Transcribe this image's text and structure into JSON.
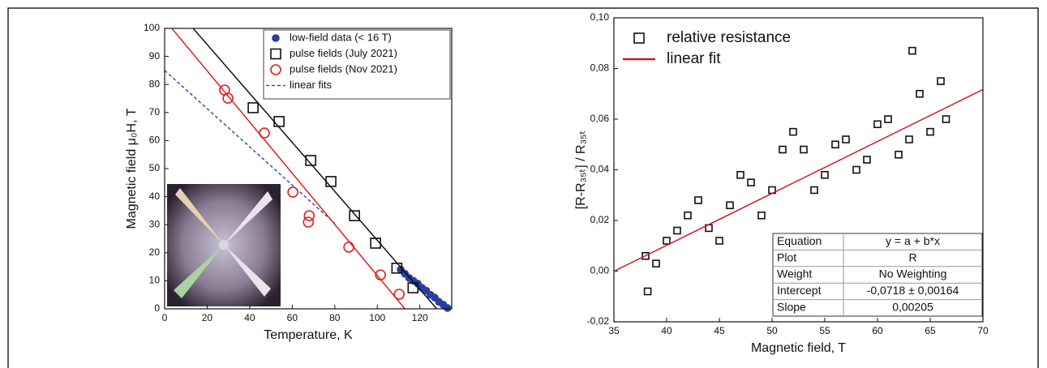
{
  "chart_data": [
    {
      "type": "scatter",
      "xlabel": "Temperature, K",
      "ylabel": "Magnetic field μ₀H, T",
      "xlim": [
        0,
        135
      ],
      "ylim": [
        0,
        100
      ],
      "xticks": [
        0,
        20,
        40,
        60,
        80,
        100,
        120
      ],
      "yticks": [
        0,
        10,
        20,
        30,
        40,
        50,
        60,
        70,
        80,
        90,
        100
      ],
      "series": [
        {
          "name": "low-field data (< 16 T)",
          "marker": "dot",
          "color": "#2b3f9e",
          "x": [
            111,
            113,
            115,
            117,
            119,
            121,
            123,
            125,
            127,
            129,
            131,
            133
          ],
          "values": [
            14,
            12.5,
            11,
            10,
            9,
            7.5,
            6.5,
            5,
            4,
            2.5,
            1.5,
            0.3
          ]
        },
        {
          "name": "pulse fields (July 2021)",
          "marker": "square",
          "color": "#111111",
          "x": [
            41.6,
            53.8,
            68.7,
            78.2,
            89.3,
            99.2,
            109.2,
            116.8
          ],
          "values": [
            71.7,
            66.8,
            52.9,
            45.4,
            33.2,
            23.4,
            14.5,
            7.5
          ]
        },
        {
          "name": "pulse fields (Nov 2021)",
          "marker": "circle",
          "color": "#e0201b",
          "x": [
            28.2,
            29.8,
            46.9,
            60.3,
            68,
            67.6,
            86.6,
            101.5,
            110.3
          ],
          "values": [
            78,
            75.1,
            62.7,
            41.6,
            33.2,
            30.9,
            22,
            12.1,
            5.2
          ]
        },
        {
          "name": "linear fits",
          "marker": "line",
          "dash": true,
          "color": "#3a4fa8",
          "x": [
            0,
            80
          ],
          "values": [
            85,
            30.5
          ]
        },
        {
          "marker": "line",
          "color": "#111111",
          "x": [
            13.4,
            128
          ],
          "values": [
            100,
            0
          ]
        },
        {
          "marker": "line",
          "color": "#e0201b",
          "x": [
            3.4,
            113
          ],
          "values": [
            100,
            0
          ]
        }
      ]
    },
    {
      "type": "scatter",
      "xlabel": "Magnetic field, T",
      "ylabel": "[R-R₃₅ₜ] / R₃₅ₜ",
      "xlim": [
        35,
        70
      ],
      "ylim": [
        -0.02,
        0.1
      ],
      "xticks": [
        35,
        40,
        45,
        50,
        55,
        60,
        65,
        70
      ],
      "yticks": [
        {
          "value": -0.02,
          "label": "-0,02"
        },
        {
          "value": 0,
          "label": "0,00"
        },
        {
          "value": 0.02,
          "label": "0,02"
        },
        {
          "value": 0.04,
          "label": "0,04"
        },
        {
          "value": 0.06,
          "label": "0,06"
        },
        {
          "value": 0.08,
          "label": "0,08"
        },
        {
          "value": 0.1,
          "label": "0,10"
        }
      ],
      "series": [
        {
          "name": "relative resistance",
          "marker": "square",
          "color": "#111111",
          "x": [
            38,
            38.2,
            39,
            40,
            41,
            42,
            43,
            44,
            45,
            46,
            47,
            48,
            49,
            50,
            51,
            52,
            53,
            54,
            55,
            56,
            57,
            58,
            59,
            60,
            61,
            62,
            63,
            63.3,
            64,
            65,
            66,
            66.5
          ],
          "values": [
            0.006,
            -0.008,
            0.003,
            0.012,
            0.016,
            0.022,
            0.028,
            0.017,
            0.012,
            0.026,
            0.038,
            0.035,
            0.022,
            0.032,
            0.048,
            0.055,
            0.048,
            0.032,
            0.038,
            0.05,
            0.052,
            0.04,
            0.044,
            0.058,
            0.06,
            0.046,
            0.052,
            0.087,
            0.07,
            0.055,
            0.075,
            0.06
          ]
        },
        {
          "name": "linear fit",
          "marker": "line",
          "color": "#d4181f",
          "x": [
            35,
            70
          ],
          "values": [
            -5e-05,
            0.0717
          ]
        }
      ],
      "table": {
        "rows": [
          [
            "Equation",
            "y = a + b*x"
          ],
          [
            "Plot",
            "R"
          ],
          [
            "Weight",
            "No Weighting"
          ],
          [
            "Intercept",
            "-0,0718 ± 0,00164"
          ],
          [
            "Slope",
            "0,00205"
          ]
        ]
      }
    }
  ]
}
